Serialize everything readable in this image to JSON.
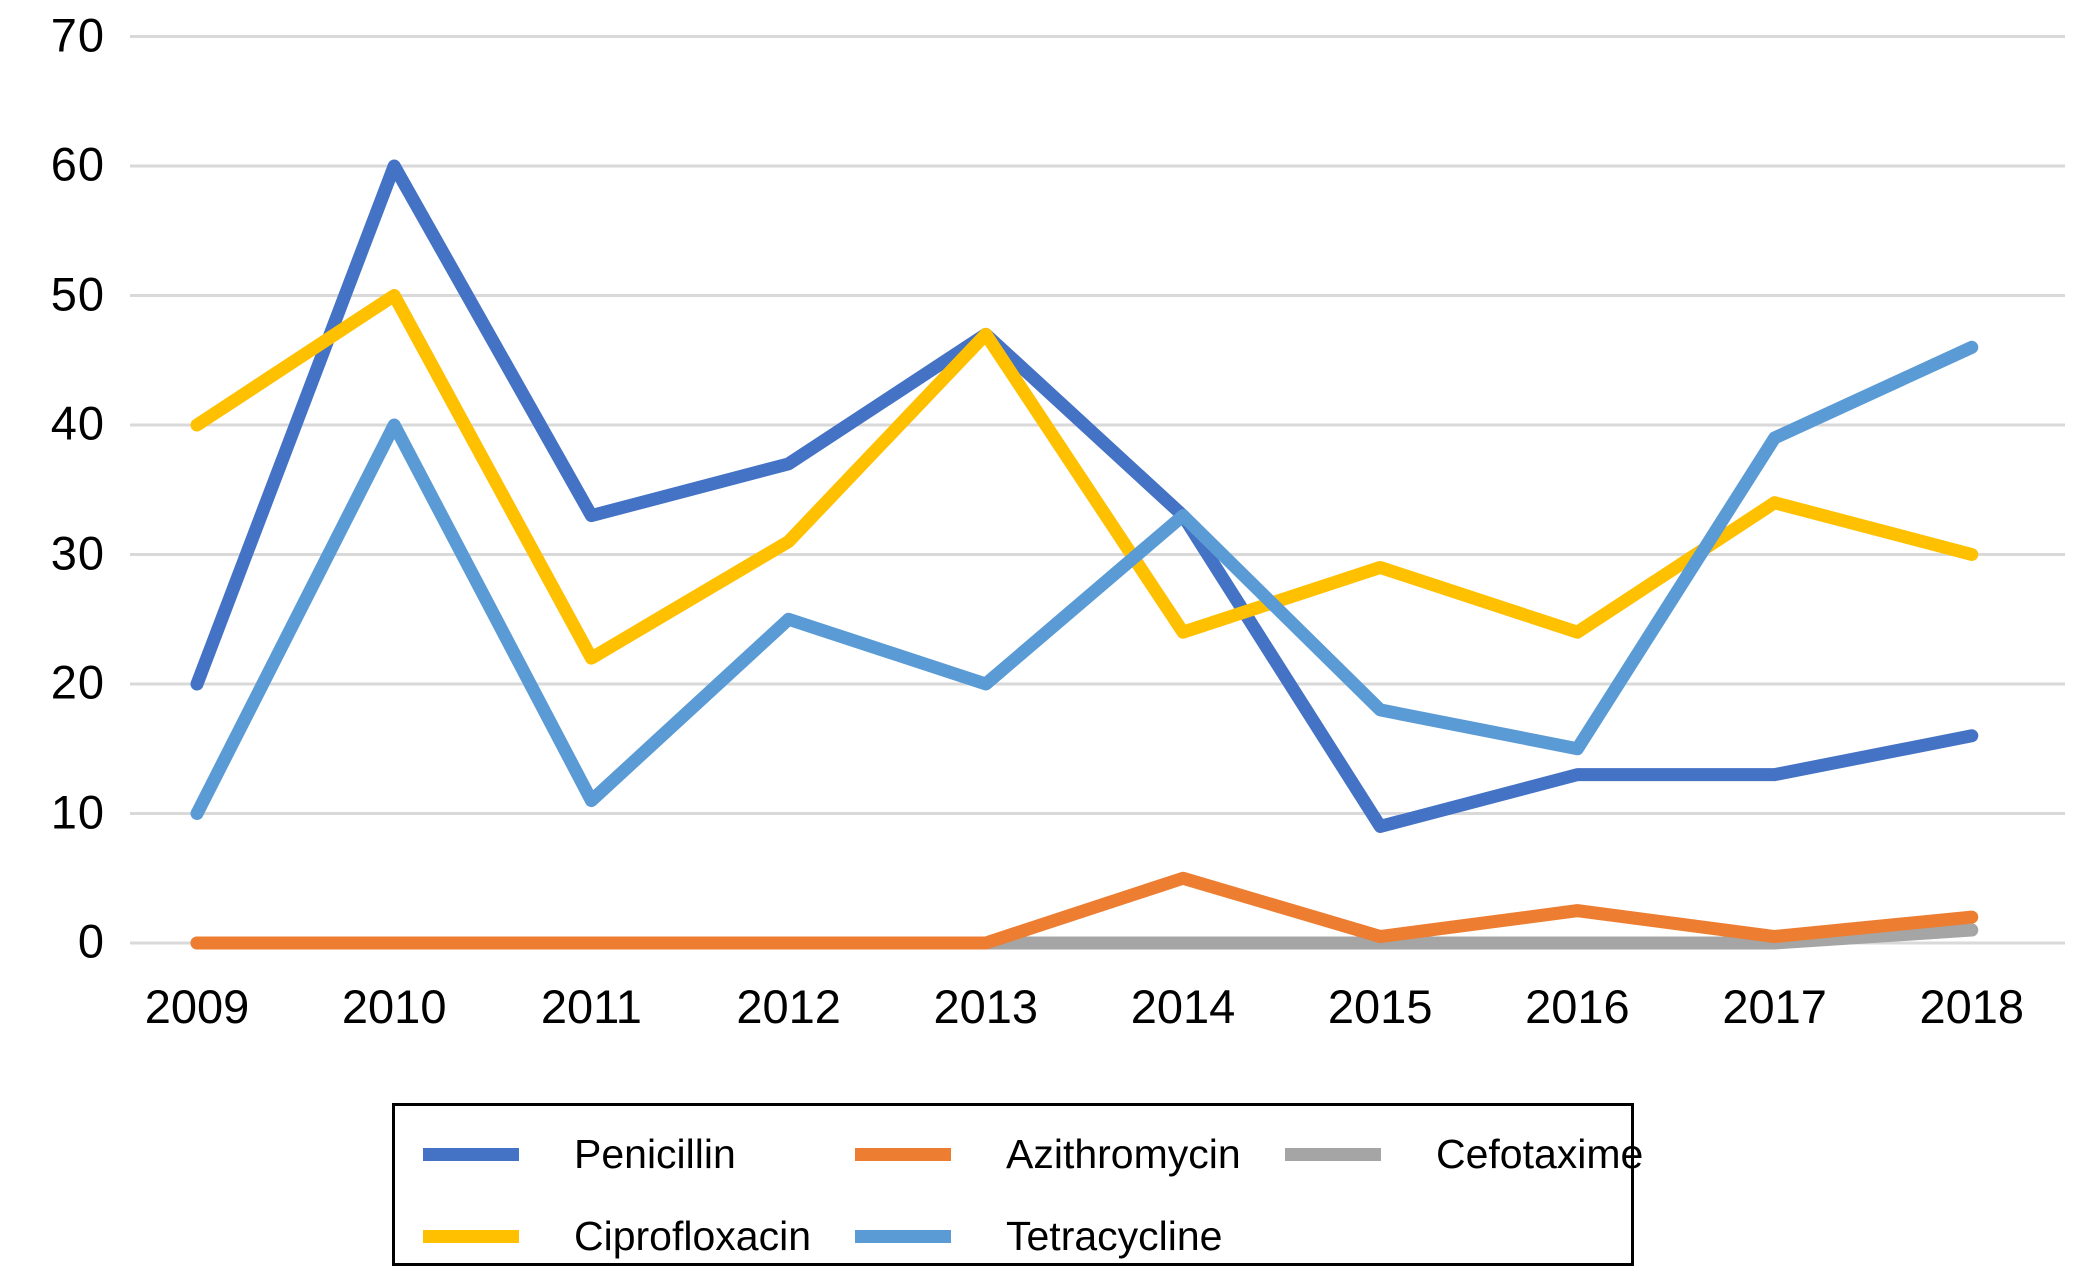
{
  "chart_data": {
    "type": "line",
    "title": "",
    "xlabel": "",
    "ylabel": "",
    "categories": [
      "2009",
      "2010",
      "2011",
      "2012",
      "2013",
      "2014",
      "2015",
      "2016",
      "2017",
      "2018"
    ],
    "series": [
      {
        "name": "Penicillin",
        "color": "#4472C4",
        "values": [
          20,
          60,
          33,
          37,
          47,
          33,
          9,
          13,
          13,
          16
        ]
      },
      {
        "name": "Azithromycin",
        "color": "#ED7D31",
        "values": [
          0,
          0,
          0,
          0,
          0,
          5,
          0.5,
          2.5,
          0.5,
          2
        ]
      },
      {
        "name": "Cefotaxime",
        "color": "#A5A5A5",
        "values": [
          0,
          0,
          0,
          0,
          0,
          0,
          0,
          0,
          0,
          1
        ]
      },
      {
        "name": "Ciprofloxacin",
        "color": "#FFC000",
        "values": [
          40,
          50,
          22,
          31,
          47,
          24,
          29,
          24,
          34,
          30
        ]
      },
      {
        "name": "Tetracycline",
        "color": "#5B9BD5",
        "values": [
          10,
          40,
          11,
          25,
          20,
          33,
          18,
          15,
          39,
          46
        ]
      }
    ],
    "draw_order": [
      0,
      2,
      1,
      3,
      4
    ],
    "ylim": [
      0,
      70
    ],
    "ytick_step": 10,
    "yticks": [
      "0",
      "10",
      "20",
      "30",
      "40",
      "50",
      "60",
      "70"
    ],
    "grid": true,
    "gridline_color": "#D9D9D9",
    "axis_text_color": "#000000",
    "legend_position": "bottom",
    "legend_rows": [
      [
        "Penicillin",
        "Azithromycin",
        "Cefotaxime"
      ],
      [
        "Ciprofloxacin",
        "Tetracycline"
      ]
    ]
  }
}
